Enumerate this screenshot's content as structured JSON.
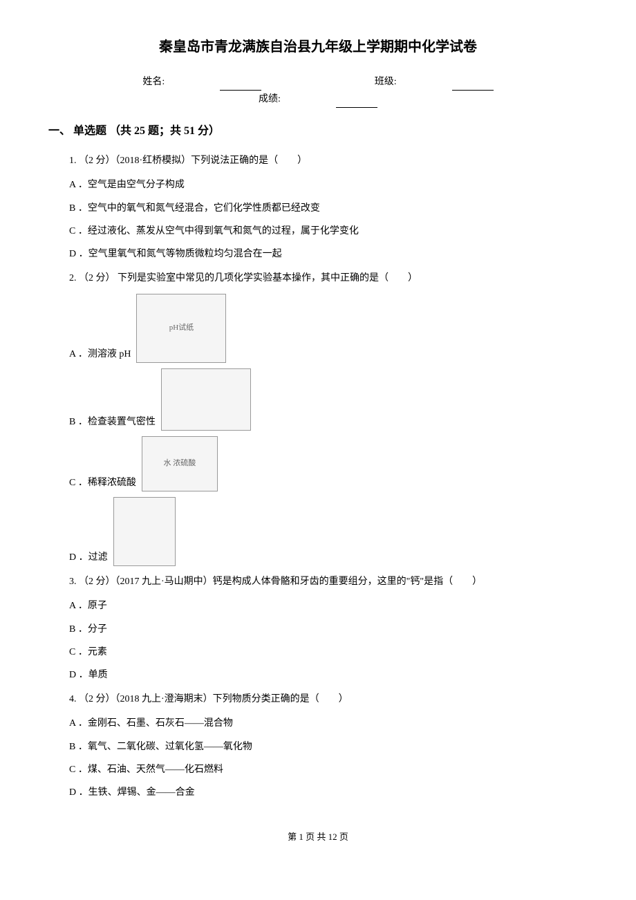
{
  "title": "秦皇岛市青龙满族自治县九年级上学期期中化学试卷",
  "info": {
    "name_label": "姓名:",
    "class_label": "班级:",
    "score_label": "成绩:"
  },
  "section": {
    "header": "一、 单选题 （共 25 题；共 51 分）"
  },
  "questions": [
    {
      "number": "1. ",
      "points": "（2 分）",
      "source": "（2018·红桥模拟）",
      "text": "下列说法正确的是（　　）",
      "options": [
        {
          "label": "A ．",
          "text": "空气是由空气分子构成"
        },
        {
          "label": "B ．",
          "text": "空气中的氧气和氮气经混合，它们化学性质都已经改变"
        },
        {
          "label": "C ．",
          "text": "经过液化、蒸发从空气中得到氧气和氮气的过程，属于化学变化"
        },
        {
          "label": "D ．",
          "text": "空气里氧气和氮气等物质微粒均匀混合在一起"
        }
      ]
    },
    {
      "number": "2. ",
      "points": "（2 分）",
      "source": " ",
      "text": "下列是实验室中常见的几项化学实验基本操作，其中正确的是（　　）",
      "options": [
        {
          "label": "A ．",
          "text": "测溶液 pH",
          "has_img": true,
          "img_class": "img-ph",
          "img_label": "pH试纸"
        },
        {
          "label": "B ．",
          "text": "检查装置气密性",
          "has_img": true,
          "img_class": "img-airtight",
          "img_label": ""
        },
        {
          "label": "C ．",
          "text": "稀释浓硫酸",
          "has_img": true,
          "img_class": "img-dilute",
          "img_label": "水 浓硫酸"
        },
        {
          "label": "D ．",
          "text": "过滤",
          "has_img": true,
          "img_class": "img-filter",
          "img_label": ""
        }
      ]
    },
    {
      "number": "3. ",
      "points": "（2 分）",
      "source": "（2017 九上·马山期中）",
      "text": "钙是构成人体骨骼和牙齿的重要组分，这里的\"钙\"是指（　　）",
      "options": [
        {
          "label": "A ．",
          "text": "原子"
        },
        {
          "label": "B ．",
          "text": "分子"
        },
        {
          "label": "C ．",
          "text": "元素"
        },
        {
          "label": "D ．",
          "text": "单质"
        }
      ]
    },
    {
      "number": "4. ",
      "points": "（2 分）",
      "source": "（2018 九上·澄海期末）",
      "text": "下列物质分类正确的是（　　）",
      "options": [
        {
          "label": "A ．",
          "text": "金刚石、石墨、石灰石——混合物"
        },
        {
          "label": "B ．",
          "text": "氧气、二氧化碳、过氧化氢——氧化物"
        },
        {
          "label": "C ．",
          "text": "煤、石油、天然气——化石燃料"
        },
        {
          "label": "D ．",
          "text": "生铁、焊锡、金——合金"
        }
      ]
    }
  ],
  "footer": "第 1 页 共 12 页"
}
